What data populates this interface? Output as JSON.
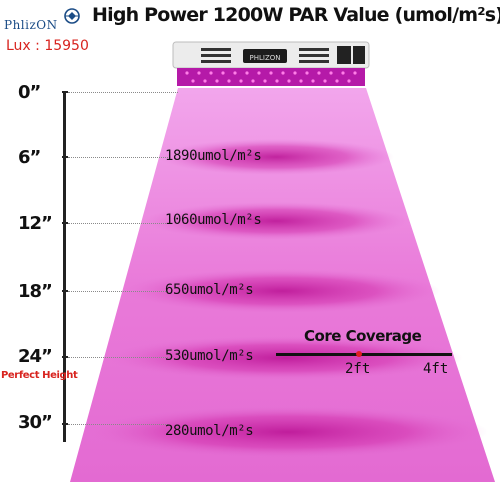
{
  "header": {
    "brand": "PhlizON",
    "lux": "Lux : 15950",
    "title": "High Power 1200W PAR Value (umol/m²s)"
  },
  "heights": [
    "0”",
    "6”",
    "12”",
    "18”",
    "24”",
    "30”"
  ],
  "perfect_height_label": "Perfect Height",
  "par_values": [
    "1890umol/m²s",
    "1060umol/m²s",
    "650umol/m²s",
    "530umol/m²s",
    "280umol/m²s"
  ],
  "core_coverage": {
    "title": "Core Coverage",
    "mark_2": "2ft",
    "mark_4": "4ft"
  },
  "fixture_label": "PHLIZON",
  "colors": {
    "cone": "#e676d8",
    "band": "#c8149e",
    "alert": "#d8241f",
    "brand_blue": "#1b4c86"
  }
}
